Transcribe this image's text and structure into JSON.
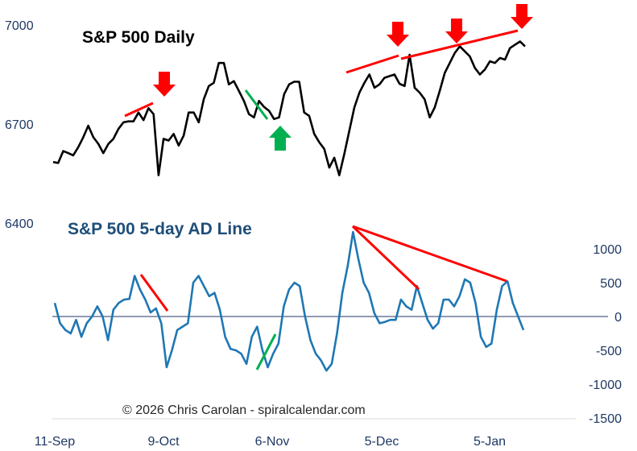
{
  "colors": {
    "price_line": "#000000",
    "ad_line": "#1f77b4",
    "divergence_red": "#ff0000",
    "divergence_green": "#00b050",
    "arrow_red": "#ff0000",
    "arrow_green": "#00b050",
    "zero_line": "#1f3864",
    "axis_text": "#1f3864"
  },
  "chart_data": [
    {
      "type": "line",
      "title": "S&P 500 Daily",
      "left_axis_ticks": [
        "7000",
        "6700",
        "6400"
      ],
      "ylim": [
        6400,
        7000
      ],
      "x_tick_labels": [
        "11-Sep",
        "9-Oct",
        "6-Nov",
        "5-Dec",
        "5-Jan"
      ],
      "series": [
        {
          "values": [
            6585,
            6582,
            6618,
            6612,
            6605,
            6630,
            6660,
            6695,
            6660,
            6640,
            6612,
            6640,
            6655,
            6685,
            6705,
            6708,
            6708,
            6735,
            6712,
            6748,
            6730,
            6545,
            6655,
            6650,
            6670,
            6635,
            6665,
            6735,
            6735,
            6705,
            6775,
            6815,
            6825,
            6885,
            6885,
            6820,
            6830,
            6800,
            6770,
            6730,
            6720,
            6770,
            6752,
            6740,
            6715,
            6720,
            6790,
            6820,
            6828,
            6828,
            6735,
            6725,
            6670,
            6645,
            6625,
            6568,
            6598,
            6545,
            6610,
            6680,
            6750,
            6795,
            6825,
            6850,
            6810,
            6820,
            6840,
            6845,
            6850,
            6822,
            6815,
            6910,
            6810,
            6795,
            6775,
            6720,
            6750,
            6800,
            6855,
            6885,
            6915,
            6935,
            6920,
            6905,
            6870,
            6850,
            6865,
            6890,
            6885,
            6900,
            6895,
            6930,
            6940,
            6950,
            6935
          ]
        }
      ],
      "annotations": {
        "red_trendlines": 3,
        "green_trendline": 1,
        "red_down_arrows": 4,
        "green_up_arrow": 1
      }
    },
    {
      "type": "line",
      "title": "S&P 500 5-day AD Line",
      "right_axis_ticks": [
        "1000",
        "500",
        "0",
        "-500",
        "-1000",
        "-1500"
      ],
      "ylim": [
        -1500,
        1250
      ],
      "series": [
        {
          "values": [
            200,
            -100,
            -200,
            -250,
            -50,
            -300,
            -100,
            0,
            150,
            0,
            -350,
            100,
            200,
            250,
            260,
            600,
            400,
            250,
            60,
            120,
            -100,
            -750,
            -500,
            -200,
            -150,
            -100,
            500,
            600,
            450,
            300,
            350,
            100,
            -300,
            -480,
            -500,
            -550,
            -700,
            -300,
            -150,
            -500,
            -750,
            -550,
            -400,
            150,
            400,
            500,
            450,
            0,
            -350,
            -550,
            -650,
            -800,
            -700,
            -250,
            350,
            750,
            1250,
            850,
            500,
            350,
            50,
            -100,
            -80,
            -50,
            -50,
            250,
            150,
            100,
            450,
            200,
            -50,
            -180,
            -100,
            250,
            250,
            150,
            300,
            550,
            500,
            200,
            -300,
            -450,
            -400,
            100,
            450,
            520,
            200,
            0,
            -200
          ]
        }
      ],
      "annotations": {
        "red_trendlines": 3,
        "green_trendline": 1
      }
    }
  ],
  "credit": "© 2026 Chris Carolan - spiralcalendar.com"
}
